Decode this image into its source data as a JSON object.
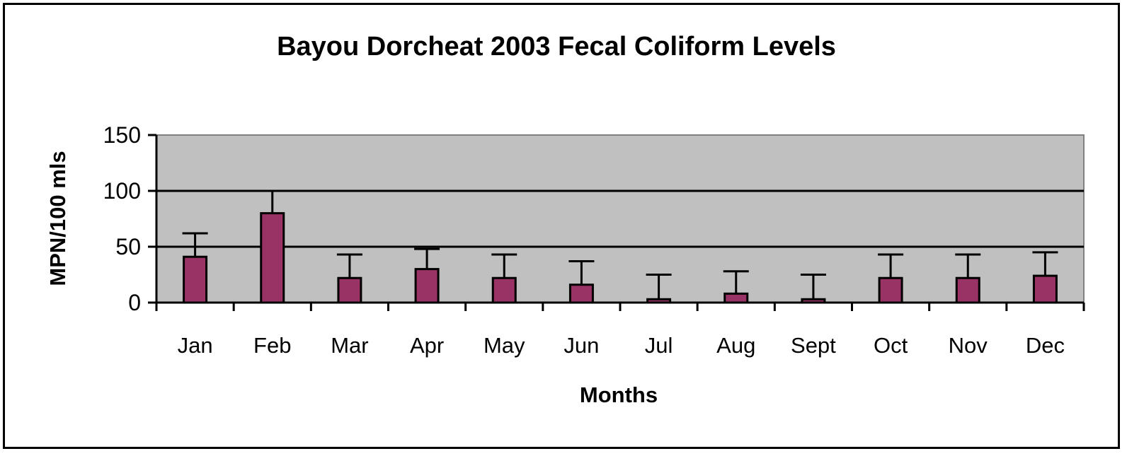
{
  "chart_data": {
    "type": "bar",
    "title": "Bayou Dorcheat 2003 Fecal Coliform Levels",
    "xlabel": "Months",
    "ylabel": "MPN/100 mls",
    "categories": [
      "Jan",
      "Feb",
      "Mar",
      "Apr",
      "May",
      "Jun",
      "Jul",
      "Aug",
      "Sept",
      "Oct",
      "Nov",
      "Dec"
    ],
    "values": [
      41,
      80,
      22,
      30,
      22,
      16,
      3,
      8,
      3,
      22,
      22,
      24
    ],
    "error_upper": [
      62,
      100,
      43,
      48,
      43,
      37,
      25,
      28,
      25,
      43,
      43,
      45
    ],
    "ylim": [
      0,
      150
    ],
    "yticks": [
      0,
      50,
      100,
      150
    ],
    "gridlines": [
      50,
      100
    ],
    "grid": true,
    "legend": "none",
    "colors": {
      "bar": "#993366",
      "plot_background": "#c0c0c0",
      "grid": "#000000"
    }
  }
}
